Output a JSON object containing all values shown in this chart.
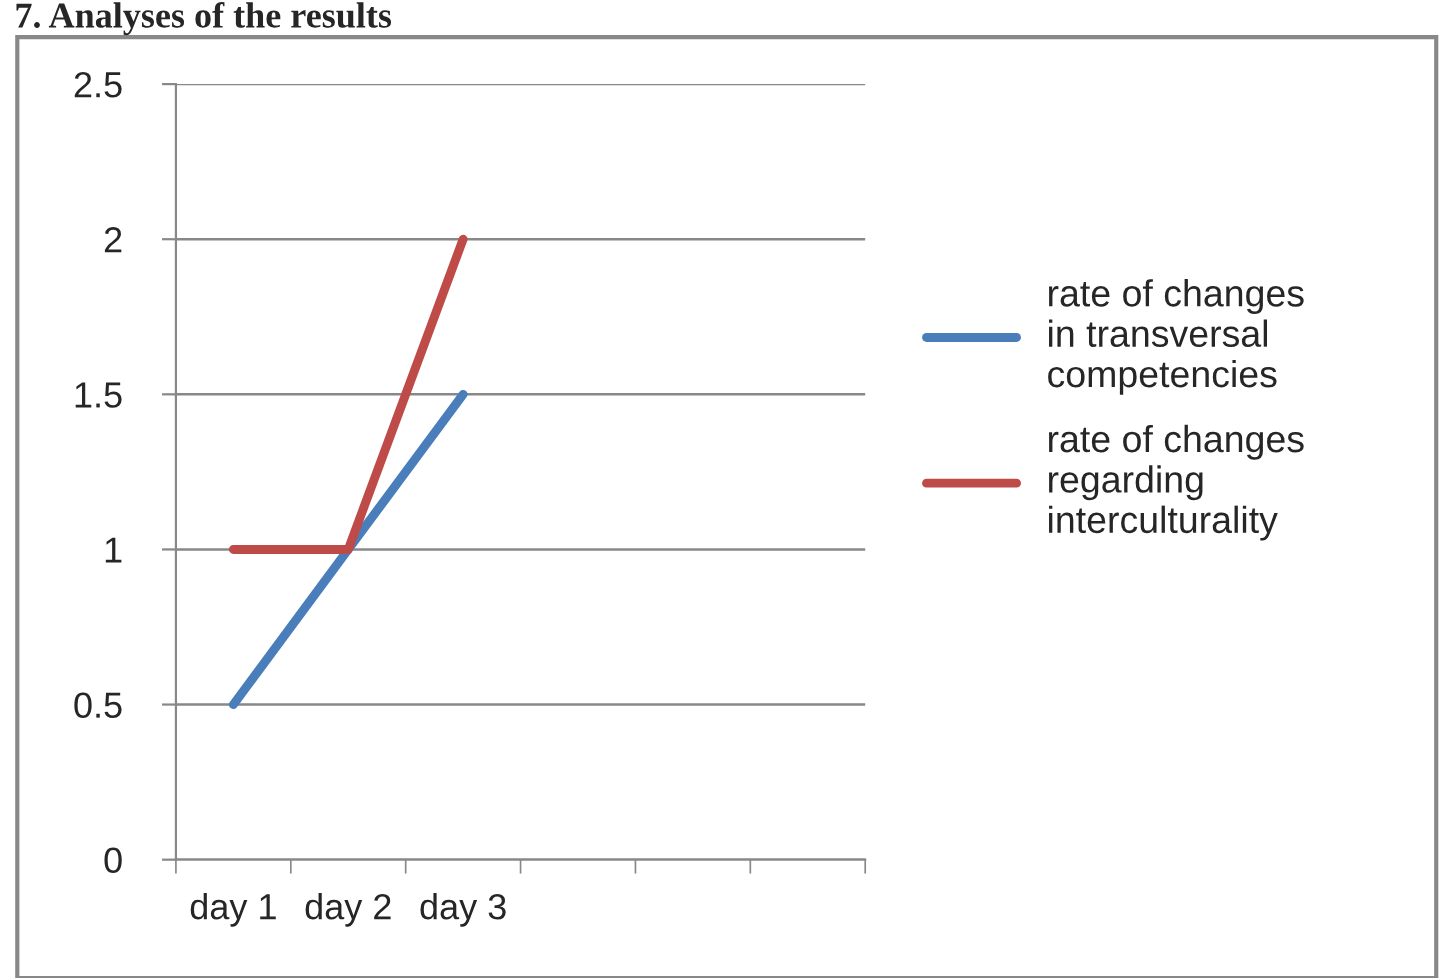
{
  "chart_data": {
    "type": "line",
    "title": "7. Analyses of the results",
    "categories": [
      "day 1",
      "day 2",
      "day 3",
      null,
      null,
      null
    ],
    "series": [
      {
        "name": "rate of changes\nin transversal\ncompetencies",
        "color": "#4a7ebb",
        "values": [
          0.5,
          1,
          1.5,
          null,
          null,
          null
        ]
      },
      {
        "name": "rate of changes\nregarding\ninterculturality",
        "color": "#be4b48",
        "values": [
          1,
          1,
          2,
          null,
          null,
          null
        ]
      }
    ],
    "ylim": [
      0,
      2.5
    ],
    "yticks": [
      0,
      0.5,
      1,
      1.5,
      2,
      2.5
    ],
    "grid": "y",
    "legend": "right",
    "marker": "none",
    "line_style": "solid"
  }
}
